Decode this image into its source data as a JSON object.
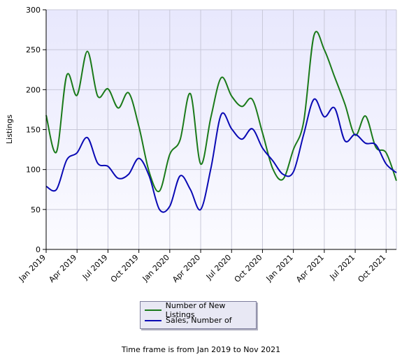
{
  "chart_data": {
    "type": "line",
    "ylabel": "Listings",
    "ylim": [
      0,
      300
    ],
    "yticks": [
      0,
      50,
      100,
      150,
      200,
      250,
      300
    ],
    "x": [
      "Jan 2019",
      "Feb 2019",
      "Mar 2019",
      "Apr 2019",
      "May 2019",
      "Jun 2019",
      "Jul 2019",
      "Aug 2019",
      "Sep 2019",
      "Oct 2019",
      "Nov 2019",
      "Dec 2019",
      "Jan 2020",
      "Feb 2020",
      "Mar 2020",
      "Apr 2020",
      "May 2020",
      "Jun 2020",
      "Jul 2020",
      "Aug 2020",
      "Sep 2020",
      "Oct 2020",
      "Nov 2020",
      "Dec 2020",
      "Jan 2021",
      "Feb 2021",
      "Mar 2021",
      "Apr 2021",
      "May 2021",
      "Jun 2021",
      "Jul 2021",
      "Aug 2021",
      "Sep 2021",
      "Oct 2021",
      "Nov 2021"
    ],
    "xtick_labels": [
      "Jan 2019",
      "Apr 2019",
      "Jul 2019",
      "Oct 2019",
      "Jan 2020",
      "Apr 2020",
      "Jul 2020",
      "Oct 2020",
      "Jan 2021",
      "Apr 2021",
      "Jul 2021",
      "Oct 2021"
    ],
    "grid": true,
    "legend_position": "bottom",
    "series": [
      {
        "name": "Number of New Listings",
        "color": "#1a7a1a",
        "values": [
          168,
          122,
          218,
          193,
          248,
          192,
          201,
          177,
          196,
          154,
          97,
          73,
          119,
          137,
          195,
          107,
          166,
          215,
          192,
          179,
          188,
          146,
          101,
          88,
          125,
          160,
          268,
          250,
          216,
          182,
          143,
          167,
          128,
          121,
          86
        ]
      },
      {
        "name": "Sales, Number of",
        "color": "#0a0ab4",
        "values": [
          79,
          75,
          112,
          121,
          140,
          108,
          104,
          89,
          94,
          114,
          92,
          50,
          54,
          92,
          75,
          50,
          102,
          169,
          151,
          138,
          151,
          127,
          111,
          94,
          97,
          144,
          188,
          166,
          177,
          136,
          144,
          133,
          131,
          107,
          96
        ]
      }
    ]
  },
  "legend": {
    "items": [
      "Number of New Listings",
      "Sales, Number of"
    ]
  },
  "footer": {
    "text": "Time frame is from Jan 2019 to Nov 2021"
  }
}
